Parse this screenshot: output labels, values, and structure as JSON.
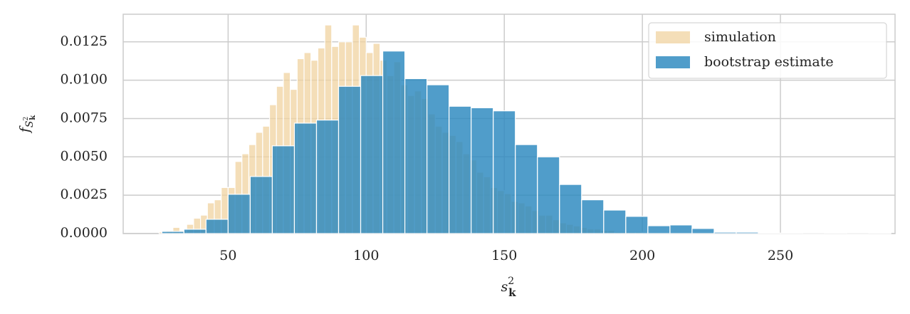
{
  "chart_data": {
    "type": "histogram",
    "xlabel": {
      "base": "s",
      "sup": "2",
      "sub": "k"
    },
    "ylabel": {
      "base": "f",
      "sub": "S",
      "subsup": "2",
      "subsub": "k"
    },
    "xlim": [
      12,
      291.5
    ],
    "ylim": [
      0,
      0.0143
    ],
    "xticks": [
      50,
      100,
      150,
      200,
      250
    ],
    "yticks": [
      {
        "value": 0,
        "label": "0.0000"
      },
      0.0025,
      {
        "value": 0.005,
        "label": "0.0050"
      },
      0.0075,
      {
        "value": 0.01,
        "label": "0.0100"
      },
      0.0125
    ],
    "grid": true,
    "legend": "upper right",
    "series": [
      {
        "name": "simulation",
        "color": "#f0d3a0",
        "bins": [
          25,
          27.5,
          30,
          32.5,
          35,
          37.5,
          40,
          42.5,
          45,
          47.5,
          50,
          52.5,
          55,
          57.5,
          60,
          62.5,
          65,
          67.5,
          70,
          72.5,
          75,
          77.5,
          80,
          82.5,
          85,
          87.5,
          90,
          92.5,
          95,
          97.5,
          100,
          102.5,
          105,
          107.5,
          110,
          112.5,
          115,
          117.5,
          120,
          122.5,
          125,
          127.5,
          130,
          132.5,
          135,
          137.5,
          140,
          142.5,
          145,
          147.5,
          150,
          152.5,
          155,
          157.5,
          160,
          162.5,
          165,
          167.5,
          170,
          172.5,
          175,
          177.5,
          180,
          182.5,
          185,
          187.5,
          190,
          192.5,
          195,
          197.5,
          200
        ],
        "values": [
          0.0001,
          0.0002,
          0.0004,
          0.0002,
          0.0006,
          0.001,
          0.0012,
          0.002,
          0.0022,
          0.003,
          0.003,
          0.0047,
          0.0052,
          0.0058,
          0.0066,
          0.007,
          0.0084,
          0.0096,
          0.0105,
          0.0094,
          0.0114,
          0.0118,
          0.0113,
          0.0121,
          0.0136,
          0.0122,
          0.0125,
          0.0125,
          0.0136,
          0.0128,
          0.0118,
          0.0124,
          0.0113,
          0.0103,
          0.0112,
          0.0097,
          0.009,
          0.0093,
          0.0088,
          0.0078,
          0.007,
          0.0066,
          0.0064,
          0.006,
          0.0052,
          0.0048,
          0.004,
          0.0037,
          0.003,
          0.0028,
          0.0026,
          0.0021,
          0.002,
          0.0018,
          0.0015,
          0.0012,
          0.0012,
          0.0009,
          0.0007,
          0.0006,
          0.0005,
          0.0004,
          0.0003,
          0.0003,
          0.0002,
          0.0002,
          0.0001,
          0.0001,
          0.0001,
          0.0001
        ]
      },
      {
        "name": "bootstrap estimate",
        "color": "#2a88be",
        "bins": [
          26,
          34,
          42,
          50,
          58,
          66,
          74,
          82,
          90,
          98,
          106,
          114,
          122,
          130,
          138,
          146,
          154,
          162,
          170,
          178,
          186,
          194,
          202,
          210,
          218,
          226,
          234,
          242,
          250,
          258,
          266,
          274,
          282,
          290
        ],
        "values": [
          0.00014,
          0.00028,
          0.00093,
          0.00256,
          0.00372,
          0.00572,
          0.0072,
          0.0074,
          0.0096,
          0.0103,
          0.0119,
          0.0101,
          0.0097,
          0.0083,
          0.0082,
          0.008,
          0.0058,
          0.005,
          0.0032,
          0.0022,
          0.00153,
          0.00112,
          0.00051,
          0.00056,
          0.00033,
          9e-05,
          9e-05,
          3e-05,
          2e-05,
          1e-05,
          2e-05,
          1e-05,
          2e-05
        ]
      }
    ]
  }
}
